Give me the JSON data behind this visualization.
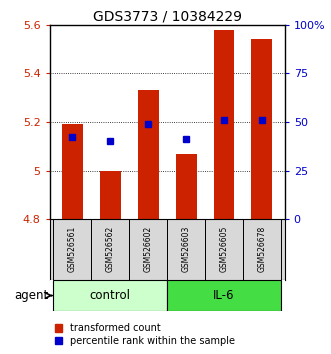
{
  "title": "GDS3773 / 10384229",
  "samples": [
    "GSM526561",
    "GSM526562",
    "GSM526602",
    "GSM526603",
    "GSM526605",
    "GSM526678"
  ],
  "groups": [
    "control",
    "control",
    "control",
    "IL-6",
    "IL-6",
    "IL-6"
  ],
  "red_values": [
    5.19,
    5.0,
    5.33,
    5.07,
    5.58,
    5.54
  ],
  "blue_values": [
    5.14,
    5.12,
    5.19,
    5.13,
    5.21,
    5.21
  ],
  "ylim": [
    4.8,
    5.6
  ],
  "yticks_left": [
    4.8,
    5.0,
    5.2,
    5.4,
    5.6
  ],
  "yticks_right": [
    0,
    25,
    50,
    75,
    100
  ],
  "yticklabels_right": [
    "0",
    "25",
    "50",
    "75",
    "100%"
  ],
  "bar_width": 0.55,
  "bar_bottom": 4.8,
  "red_color": "#cc2200",
  "blue_color": "#0000cc",
  "control_color": "#ccffcc",
  "il6_color": "#44dd44",
  "group_label_fontsize": 8.5,
  "tick_label_fontsize": 8,
  "title_fontsize": 10,
  "legend_fontsize": 7,
  "agent_fontsize": 8.5,
  "sample_fontsize": 5.5,
  "gridline_dotted_color": "#000000"
}
